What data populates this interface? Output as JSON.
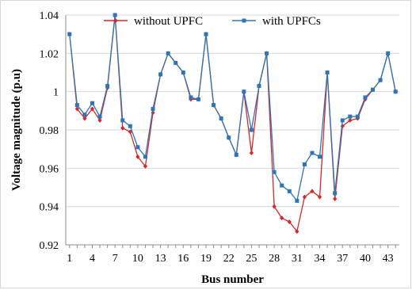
{
  "chart_data": {
    "type": "line",
    "title": "",
    "xlabel": "Bus number",
    "ylabel": "Voltage magnitude (p.u)",
    "xlim": [
      0.5,
      44.5
    ],
    "ylim": [
      0.92,
      1.04
    ],
    "yticks": [
      "0.92",
      "0.94",
      "0.96",
      "0.98",
      "1",
      "1.02",
      "1.04"
    ],
    "xticks": [
      "1",
      "4",
      "7",
      "10",
      "13",
      "16",
      "19",
      "22",
      "25",
      "28",
      "31",
      "34",
      "37",
      "40",
      "43"
    ],
    "grid": "horizontal",
    "legend": "top",
    "x": [
      1,
      2,
      3,
      4,
      5,
      6,
      7,
      8,
      9,
      10,
      11,
      12,
      13,
      14,
      15,
      16,
      17,
      18,
      19,
      20,
      21,
      22,
      23,
      24,
      25,
      26,
      27,
      28,
      29,
      30,
      31,
      32,
      33,
      34,
      35,
      36,
      37,
      38,
      39,
      40,
      41,
      42,
      43,
      44
    ],
    "series": [
      {
        "name": "without UPFC",
        "color": "#d4282a",
        "marker": "diamond",
        "values": [
          1.03,
          0.991,
          0.986,
          0.991,
          0.985,
          1.002,
          1.04,
          0.981,
          0.979,
          0.966,
          0.961,
          0.989,
          1.009,
          1.02,
          1.015,
          1.01,
          0.996,
          0.996,
          1.03,
          0.993,
          0.986,
          0.976,
          0.967,
          1.0,
          0.968,
          1.003,
          1.02,
          0.94,
          0.934,
          0.932,
          0.927,
          0.945,
          0.948,
          0.945,
          1.01,
          0.944,
          0.982,
          0.985,
          0.986,
          0.996,
          1.001,
          1.006,
          1.02,
          1.0
        ]
      },
      {
        "name": "with UPFCs",
        "color": "#2e75b6",
        "marker": "square",
        "values": [
          1.03,
          0.993,
          0.988,
          0.994,
          0.987,
          1.003,
          1.04,
          0.985,
          0.982,
          0.971,
          0.966,
          0.991,
          1.009,
          1.02,
          1.015,
          1.01,
          0.997,
          0.996,
          1.03,
          0.993,
          0.986,
          0.976,
          0.967,
          1.0,
          0.98,
          1.003,
          1.02,
          0.958,
          0.951,
          0.948,
          0.943,
          0.962,
          0.968,
          0.966,
          1.01,
          0.947,
          0.985,
          0.987,
          0.987,
          0.997,
          1.001,
          1.006,
          1.02,
          1.0
        ]
      }
    ]
  }
}
